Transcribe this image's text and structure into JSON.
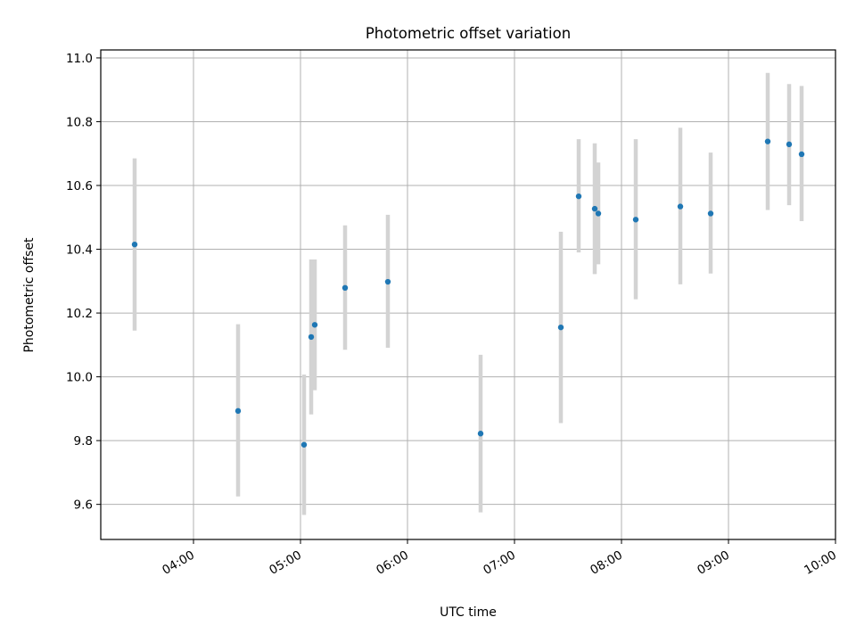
{
  "chart_data": {
    "type": "scatter",
    "title": "Photometric offset variation",
    "xlabel": "UTC time",
    "ylabel": "Photometric offset",
    "grid": true,
    "xlim": [
      "03:08",
      "10:00"
    ],
    "ylim": [
      9.49,
      11.025
    ],
    "x_ticks": [
      "04:00",
      "05:00",
      "06:00",
      "07:00",
      "08:00",
      "09:00",
      "10:00"
    ],
    "y_ticks": [
      "9.6",
      "9.8",
      "10.0",
      "10.2",
      "10.4",
      "10.6",
      "10.8",
      "11.0"
    ],
    "point_color": "#1f77b4",
    "errorbar_color": "#d3d3d3",
    "points": [
      {
        "x": "03:27",
        "y": 10.415,
        "low": 10.145,
        "high": 10.685
      },
      {
        "x": "04:25",
        "y": 9.893,
        "low": 9.625,
        "high": 10.165
      },
      {
        "x": "05:02",
        "y": 9.787,
        "low": 9.567,
        "high": 10.007
      },
      {
        "x": "05:06",
        "y": 10.125,
        "low": 9.882,
        "high": 10.368
      },
      {
        "x": "05:08",
        "y": 10.163,
        "low": 9.958,
        "high": 10.368
      },
      {
        "x": "05:25",
        "y": 10.279,
        "low": 10.085,
        "high": 10.475
      },
      {
        "x": "05:49",
        "y": 10.298,
        "low": 10.091,
        "high": 10.508
      },
      {
        "x": "06:41",
        "y": 9.822,
        "low": 9.575,
        "high": 10.069
      },
      {
        "x": "07:26",
        "y": 10.155,
        "low": 9.855,
        "high": 10.455
      },
      {
        "x": "07:36",
        "y": 10.566,
        "low": 10.39,
        "high": 10.745
      },
      {
        "x": "07:45",
        "y": 10.527,
        "low": 10.322,
        "high": 10.732
      },
      {
        "x": "07:47",
        "y": 10.512,
        "low": 10.353,
        "high": 10.672
      },
      {
        "x": "08:08",
        "y": 10.493,
        "low": 10.243,
        "high": 10.745
      },
      {
        "x": "08:33",
        "y": 10.534,
        "low": 10.29,
        "high": 10.781
      },
      {
        "x": "08:50",
        "y": 10.512,
        "low": 10.324,
        "high": 10.703
      },
      {
        "x": "09:22",
        "y": 10.738,
        "low": 10.523,
        "high": 10.953
      },
      {
        "x": "09:34",
        "y": 10.729,
        "low": 10.538,
        "high": 10.918
      },
      {
        "x": "09:41",
        "y": 10.698,
        "low": 10.488,
        "high": 10.912
      }
    ]
  }
}
